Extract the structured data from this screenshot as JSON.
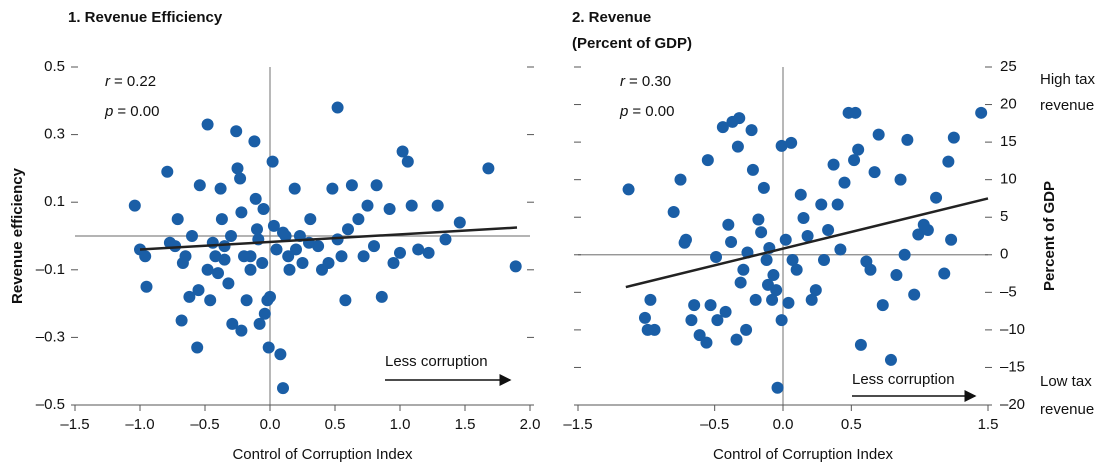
{
  "chart_data": [
    {
      "type": "scatter",
      "title": [
        "1. Revenue Efficiency"
      ],
      "xlabel": "Control of Corruption Index",
      "ylabel": "Revenue efficiency",
      "xlim": [
        -1.5,
        2.0
      ],
      "ylim": [
        -0.5,
        0.5
      ],
      "xticks": [
        {
          "value": -1.5,
          "label": "–1.5"
        },
        {
          "value": -1.0,
          "label": "–1.0"
        },
        {
          "value": -0.5,
          "label": "–0.5"
        },
        {
          "value": 0,
          "label": "0.0"
        },
        0.5,
        {
          "value": 1.0,
          "label": "1.0"
        },
        1.5,
        {
          "value": 2.0,
          "label": "2.0"
        }
      ],
      "yticks": [
        0.5,
        0.3,
        0.1,
        {
          "value": -0.1,
          "label": "–0.1"
        },
        {
          "value": -0.3,
          "label": "–0.3"
        },
        {
          "value": -0.5,
          "label": "–0.5"
        }
      ],
      "yaxis_side": "left",
      "stats": [
        {
          "symbol": "r",
          "text": "= 0.22"
        },
        {
          "symbol": "p",
          "text": "= 0.00"
        }
      ],
      "annotation": "Less corruption",
      "series": [
        {
          "color": "#1a5ea6",
          "x": [
            -1.04,
            -0.96,
            -0.95,
            -1.0,
            -0.79,
            -0.71,
            -0.73,
            -0.77,
            -0.67,
            -0.65,
            -0.68,
            -0.62,
            -0.56,
            -0.55,
            -0.54,
            -0.48,
            -0.48,
            -0.44,
            -0.42,
            -0.46,
            -0.38,
            -0.37,
            -0.4,
            -0.35,
            -0.32,
            -0.29,
            -0.26,
            -0.25,
            -0.23,
            -0.22,
            -0.2,
            -0.22,
            -0.18,
            -0.15,
            -0.12,
            -0.11,
            -0.09,
            -0.08,
            -0.06,
            -0.04,
            -0.02,
            -0.01,
            0.02,
            0.03,
            0.05,
            0.0,
            0.08,
            0.1,
            0.12,
            0.14,
            0.15,
            0.19,
            0.23,
            0.25,
            0.31,
            0.37,
            0.4,
            0.48,
            0.52,
            0.52,
            0.55,
            0.58,
            0.63,
            0.68,
            0.72,
            0.75,
            0.82,
            0.86,
            0.92,
            0.95,
            1.02,
            1.06,
            1.09,
            1.14,
            1.22,
            1.29,
            1.35,
            1.46,
            1.68,
            1.89,
            -0.3,
            -0.1,
            0.1,
            0.3,
            0.6,
            0.8,
            -0.6,
            -0.05,
            0.2,
            0.45,
            1.0,
            -0.15,
            -0.35
          ],
          "values": [
            0.09,
            -0.06,
            -0.15,
            -0.04,
            0.19,
            0.05,
            -0.03,
            -0.02,
            -0.08,
            -0.06,
            -0.25,
            -0.18,
            -0.33,
            -0.16,
            0.15,
            0.33,
            -0.1,
            -0.02,
            -0.06,
            -0.19,
            0.14,
            0.05,
            -0.11,
            -0.03,
            -0.14,
            -0.26,
            0.31,
            0.2,
            0.17,
            0.07,
            -0.06,
            -0.28,
            -0.19,
            -0.06,
            0.28,
            0.11,
            -0.01,
            -0.26,
            -0.08,
            -0.23,
            -0.19,
            -0.33,
            0.22,
            0.03,
            -0.04,
            -0.18,
            -0.35,
            -0.45,
            0.0,
            -0.06,
            -0.1,
            0.14,
            0.0,
            -0.08,
            0.05,
            -0.03,
            -0.1,
            0.14,
            0.38,
            -0.01,
            -0.06,
            -0.19,
            0.15,
            0.05,
            -0.06,
            0.09,
            0.15,
            -0.18,
            0.08,
            -0.08,
            0.25,
            0.22,
            0.09,
            -0.04,
            -0.05,
            0.09,
            -0.01,
            0.04,
            0.2,
            -0.09,
            0.0,
            0.02,
            0.01,
            -0.02,
            0.02,
            -0.03,
            0.0,
            0.08,
            -0.04,
            -0.08,
            -0.05,
            -0.1,
            -0.07
          ]
        }
      ],
      "trend_line": {
        "x": [
          -1.0,
          1.9
        ],
        "y": [
          -0.04,
          0.025
        ]
      }
    },
    {
      "type": "scatter",
      "title": [
        "2. Revenue",
        "(Percent of GDP)"
      ],
      "xlabel": "Control of Corruption Index",
      "ylabel": "Percent of GDP",
      "xlim": [
        -1.5,
        1.5
      ],
      "ylim": [
        -20,
        25
      ],
      "xticks": [
        {
          "value": -1.5,
          "label": "–1.5"
        },
        {
          "value": -0.5,
          "label": "–0.5"
        },
        {
          "value": 0,
          "label": "0.0"
        },
        0.5,
        1.5
      ],
      "yticks": [
        25,
        20,
        15,
        10,
        5,
        0,
        {
          "value": -5,
          "label": "–5"
        },
        {
          "value": -10,
          "label": "–10"
        },
        {
          "value": -15,
          "label": "–15"
        },
        {
          "value": -20,
          "label": "–20"
        }
      ],
      "yaxis_side": "right",
      "side_labels": {
        "top": [
          "High tax",
          "revenue"
        ],
        "bottom": [
          "Low tax",
          "revenue"
        ]
      },
      "stats": [
        {
          "symbol": "r",
          "text": "= 0.30"
        },
        {
          "symbol": "p",
          "text": "= 0.00"
        }
      ],
      "annotation": "Less corruption",
      "series": [
        {
          "color": "#1a5ea6",
          "x": [
            -1.13,
            -1.01,
            -0.94,
            -0.99,
            -0.97,
            -0.8,
            -0.75,
            -0.72,
            -0.71,
            -0.67,
            -0.65,
            -0.61,
            -0.56,
            -0.55,
            -0.53,
            -0.49,
            -0.48,
            -0.44,
            -0.42,
            -0.4,
            -0.38,
            -0.37,
            -0.34,
            -0.33,
            -0.32,
            -0.31,
            -0.29,
            -0.27,
            -0.26,
            -0.23,
            -0.22,
            -0.2,
            -0.18,
            -0.16,
            -0.14,
            -0.12,
            -0.11,
            -0.1,
            -0.08,
            -0.07,
            -0.05,
            -0.04,
            -0.01,
            -0.01,
            0.02,
            0.04,
            0.06,
            0.07,
            0.1,
            0.13,
            0.15,
            0.18,
            0.21,
            0.24,
            0.28,
            0.3,
            0.33,
            0.37,
            0.4,
            0.42,
            0.45,
            0.48,
            0.53,
            0.52,
            0.55,
            0.57,
            0.61,
            0.64,
            0.67,
            0.7,
            0.73,
            0.79,
            0.83,
            0.86,
            0.89,
            0.91,
            0.96,
            0.99,
            1.03,
            1.06,
            1.12,
            1.18,
            1.21,
            1.23,
            1.25,
            1.45
          ],
          "values": [
            8.7,
            -8.4,
            -10,
            -10,
            -6,
            5.7,
            10,
            1.6,
            2,
            -8.7,
            -6.7,
            -10.7,
            -11.7,
            12.6,
            -6.7,
            -0.3,
            -8.7,
            17,
            -7.6,
            4,
            1.7,
            17.7,
            -11.3,
            14.4,
            18.2,
            -3.7,
            -2,
            -10,
            0.3,
            16.6,
            11.3,
            -6,
            4.7,
            3,
            8.9,
            -0.7,
            -4,
            0.9,
            -6,
            -2.7,
            -4.7,
            -17.7,
            -8.7,
            14.5,
            2,
            -6.4,
            14.9,
            -0.7,
            -2,
            8,
            4.9,
            2.5,
            -6,
            -4.7,
            6.7,
            -0.7,
            3.3,
            12,
            6.7,
            0.7,
            9.6,
            18.9,
            18.9,
            12.6,
            14,
            -12,
            -0.9,
            -2,
            11,
            16,
            -6.7,
            -14,
            -2.7,
            10,
            0,
            15.3,
            -5.3,
            2.7,
            4,
            3.3,
            7.6,
            -2.5,
            12.4,
            2,
            15.6,
            18.9
          ]
        }
      ],
      "trend_line": {
        "x": [
          -1.15,
          1.5
        ],
        "y": [
          -4.3,
          7.5
        ]
      }
    }
  ]
}
